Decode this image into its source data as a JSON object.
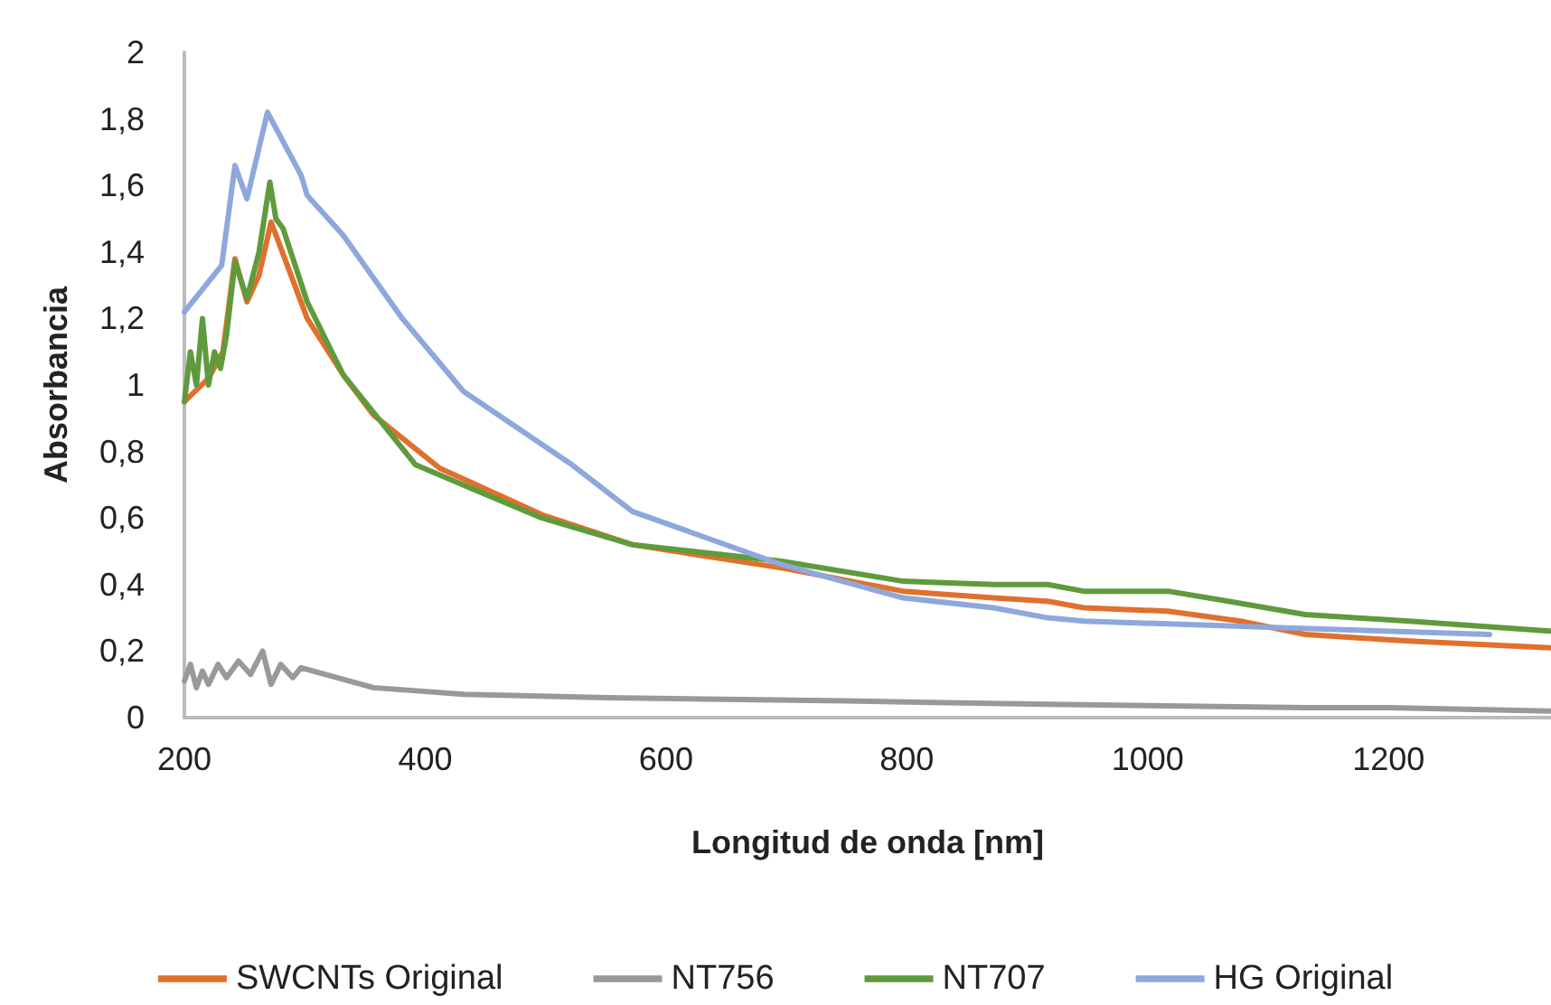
{
  "chart_data": {
    "type": "line",
    "xlabel": "Longitud de onda [nm]",
    "ylabel": "Absorbancia",
    "xlim": [
      200,
      1335
    ],
    "xticks": [
      200,
      400,
      600,
      800,
      1000,
      1200
    ],
    "ylim": [
      0,
      2
    ],
    "yticks": [
      0,
      {
        "value": 0.2,
        "label": "0,2"
      },
      {
        "value": 0.4,
        "label": "0,4"
      },
      {
        "value": 0.6,
        "label": "0,6"
      },
      {
        "value": 0.8,
        "label": "0,8"
      },
      1,
      {
        "value": 1.2,
        "label": "1,2"
      },
      {
        "value": 1.4,
        "label": "1,4"
      },
      {
        "value": 1.6,
        "label": "1,6"
      },
      {
        "value": 1.8,
        "label": "1,8"
      },
      2
    ],
    "grid": false,
    "legend": "bottom",
    "marker": "none",
    "line_style": "solid",
    "series": [
      {
        "name": "SWCNTs Original",
        "color": "#e0702e",
        "x": [
          200,
          220,
          232,
          242,
          252,
          262,
          272,
          302,
          332,
          357,
          412,
          497,
          572,
          696,
          797,
          872,
          917,
          947,
          1017,
          1077,
          1131,
          1217,
          1334
        ],
        "values": [
          0.95,
          1.02,
          1.1,
          1.38,
          1.25,
          1.33,
          1.49,
          1.2,
          1.03,
          0.91,
          0.75,
          0.61,
          0.52,
          0.45,
          0.38,
          0.36,
          0.35,
          0.33,
          0.32,
          0.29,
          0.25,
          0.23,
          0.21
        ]
      },
      {
        "name": "NT756",
        "color": "#999999",
        "x": [
          200,
          205,
          210,
          215,
          220,
          228,
          235,
          245,
          255,
          265,
          272,
          280,
          290,
          297,
          357,
          432,
          552,
          750,
          917,
          1131,
          1200,
          1334
        ],
        "values": [
          0.11,
          0.16,
          0.09,
          0.14,
          0.1,
          0.16,
          0.12,
          0.17,
          0.13,
          0.2,
          0.1,
          0.16,
          0.12,
          0.15,
          0.09,
          0.07,
          0.06,
          0.05,
          0.04,
          0.03,
          0.03,
          0.02
        ]
      },
      {
        "name": "NT707",
        "color": "#5f9b3c",
        "x": [
          200,
          205,
          210,
          215,
          220,
          225,
          230,
          235,
          242,
          252,
          262,
          271,
          276,
          282,
          302,
          332,
          392,
          497,
          572,
          696,
          797,
          872,
          917,
          947,
          1017,
          1067,
          1131,
          1217,
          1334
        ],
        "values": [
          0.95,
          1.1,
          1.0,
          1.2,
          1.0,
          1.1,
          1.05,
          1.15,
          1.37,
          1.26,
          1.4,
          1.61,
          1.5,
          1.47,
          1.25,
          1.03,
          0.76,
          0.6,
          0.52,
          0.47,
          0.41,
          0.4,
          0.4,
          0.38,
          0.38,
          0.35,
          0.31,
          0.29,
          0.26
        ]
      },
      {
        "name": "HG Original",
        "color": "#8ea8dc",
        "x": [
          200,
          231,
          242,
          252,
          269,
          297,
          302,
          332,
          381,
          432,
          522,
          572,
          696,
          797,
          872,
          917,
          947,
          1116,
          1284
        ],
        "values": [
          1.22,
          1.36,
          1.66,
          1.56,
          1.82,
          1.63,
          1.57,
          1.45,
          1.2,
          0.98,
          0.76,
          0.62,
          0.46,
          0.36,
          0.33,
          0.3,
          0.29,
          0.27,
          0.25
        ]
      }
    ]
  }
}
